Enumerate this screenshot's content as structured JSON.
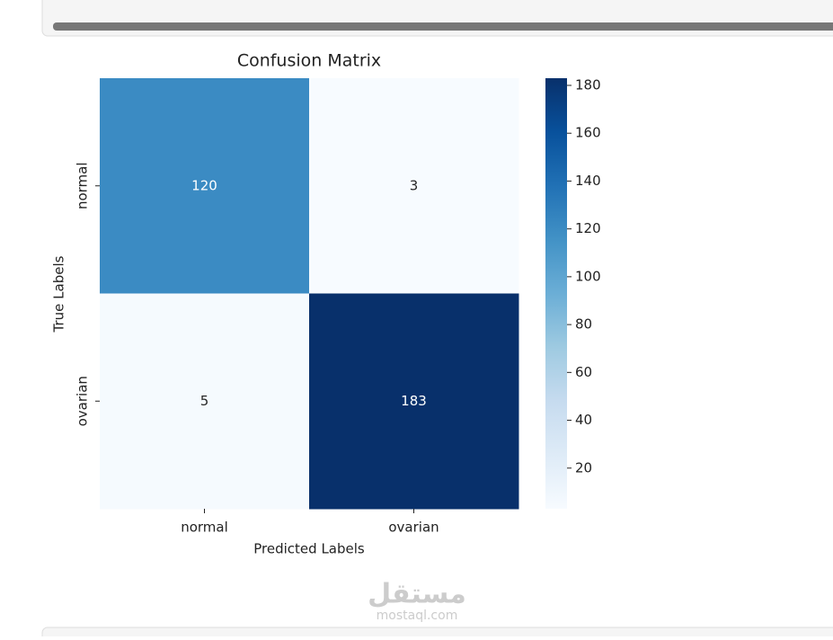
{
  "chart_data": {
    "type": "heatmap",
    "title": "Confusion Matrix",
    "x_label": "Predicted Labels",
    "y_label": "True Labels",
    "x_categories": [
      "normal",
      "ovarian"
    ],
    "y_categories": [
      "normal",
      "ovarian"
    ],
    "values": [
      [
        120,
        3
      ],
      [
        5,
        183
      ]
    ],
    "colormap": [
      "#f7fbff",
      "#deebf7",
      "#c6dbef",
      "#9ecae1",
      "#6baed6",
      "#4292c6",
      "#2171b5",
      "#08519c",
      "#08306b"
    ],
    "colorbar_lim": [
      3,
      183
    ],
    "colorbar_ticks": [
      20,
      40,
      60,
      80,
      100,
      120,
      140,
      160,
      180
    ]
  },
  "watermark": {
    "arabic": "مستقل",
    "latin": "mostaql.com"
  }
}
